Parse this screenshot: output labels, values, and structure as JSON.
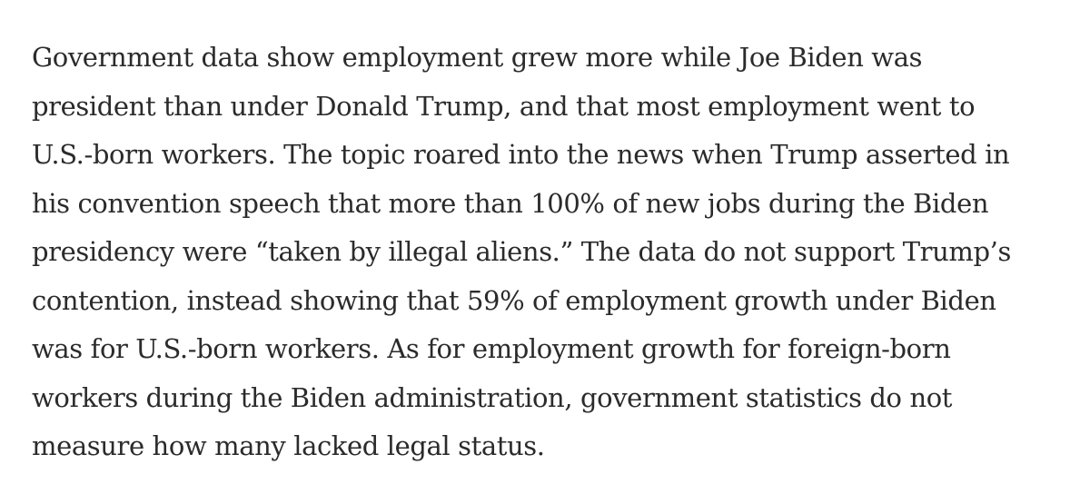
{
  "article": {
    "paragraph_lines": [
      "Government data show employment grew more while Joe Biden was",
      "president than under Donald Trump, and that most employment went to",
      "U.S.-born workers. The topic roared into the news when Trump asserted in",
      "his convention speech that more than 100% of new jobs during the Biden",
      "presidency were “taken by illegal aliens.” The data do not support Trump’s",
      "contention, instead showing that 59% of employment growth under Biden",
      "was for U.S.-born workers. As for employment growth for foreign-born",
      "workers during the Biden administration, government statistics do not",
      "measure how many lacked legal status."
    ]
  }
}
